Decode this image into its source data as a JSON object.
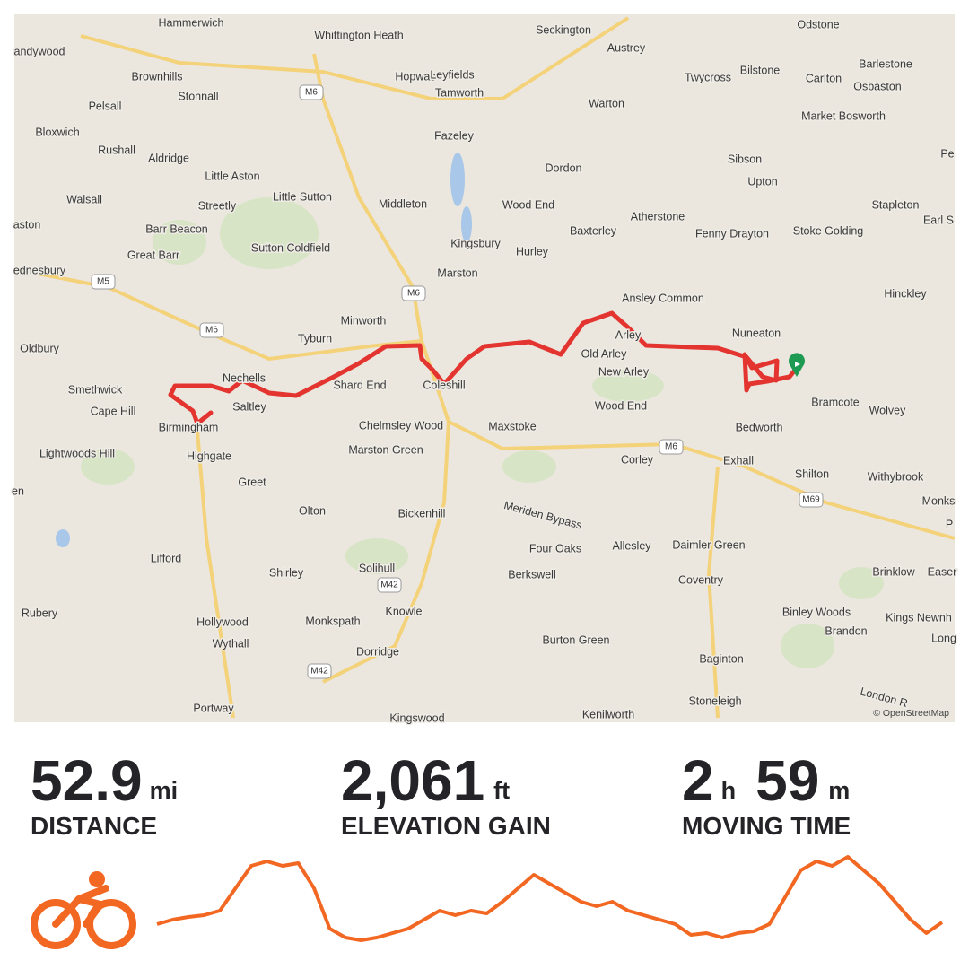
{
  "map": {
    "labels": [
      "Hammerwich",
      "Whittington Heath",
      "Seckington",
      "Austrey",
      "Odstone",
      "andywood",
      "Brownhills",
      "Hopwas",
      "Leyfields",
      "Tamworth",
      "Bilstone",
      "Barlestone",
      "Stonnall",
      "Twycross",
      "Carlton",
      "Osbaston",
      "Pelsall",
      "Warton",
      "Market Bosworth",
      "Bloxwich",
      "Rushall",
      "Aldridge",
      "Fazeley",
      "Sibson",
      "Pe",
      "Little Aston",
      "Dordon",
      "Upton",
      "Walsall",
      "Little Sutton",
      "Streetly",
      "Middleton",
      "Wood End",
      "Atherstone",
      "Stapleton",
      "Earl S",
      "aston",
      "Barr Beacon",
      "Baxterley",
      "Fenny Drayton",
      "Stoke Golding",
      "Sutton Coldfield",
      "Kingsbury",
      "Hurley",
      "Great Barr",
      "Marston",
      "ednesbury",
      "Hinckley",
      "Ansley Common",
      "Minworth",
      "Tyburn",
      "Nuneaton",
      "Arley",
      "Old Arley",
      "Oldbury",
      "Nechells",
      "Shard End",
      "Coleshill",
      "New Arley",
      "Smethwick",
      "Saltley",
      "Bramcote",
      "Wolvey",
      "Cape Hill",
      "Birmingham",
      "Chelmsley Wood",
      "Maxstoke",
      "Wood End",
      "Bedworth",
      "Lightwoods Hill",
      "Highgate",
      "Marston Green",
      "Corley",
      "Exhall",
      "Greet",
      "Shilton",
      "Withybrook",
      "en",
      "Monks",
      "Olton",
      "Bickenhill",
      "Meriden Bypass",
      "Four Oaks",
      "Allesley",
      "Daimler Green",
      "P",
      "Lifford",
      "Shirley",
      "Solihull",
      "Berkswell",
      "Coventry",
      "Brinklow",
      "Easer",
      "Rubery",
      "Knowle",
      "Hollywood",
      "Monkspath",
      "Binley Woods",
      "Kings Newnh",
      "Wythall",
      "Dorridge",
      "Burton Green",
      "Brandon",
      "Long",
      "Baginton",
      "Portway",
      "Stoneleigh",
      "London R",
      "Kingswood",
      "Kenilworth"
    ],
    "roads": [
      "M6",
      "M6",
      "M6",
      "M5",
      "M6",
      "M69",
      "M42",
      "M42"
    ],
    "attribution": "© OpenStreetMap"
  },
  "stats": [
    {
      "parts": [
        {
          "value": "52.9",
          "unit": "mi"
        }
      ],
      "label": "DISTANCE"
    },
    {
      "parts": [
        {
          "value": "2,061",
          "unit": "ft"
        }
      ],
      "label": "ELEVATION GAIN"
    },
    {
      "parts": [
        {
          "value": "2",
          "unit": "h"
        },
        {
          "value": "59",
          "unit": "m"
        }
      ],
      "label": "MOVING TIME"
    }
  ],
  "elevation_profile": [
    30,
    35,
    38,
    40,
    45,
    70,
    95,
    100,
    95,
    98,
    70,
    25,
    15,
    12,
    15,
    20,
    25,
    35,
    45,
    40,
    45,
    42,
    55,
    70,
    85,
    75,
    65,
    55,
    50,
    55,
    45,
    40,
    35,
    30,
    18,
    20,
    15,
    20,
    22,
    30,
    60,
    90,
    100,
    95,
    105,
    90,
    75,
    55,
    35,
    20,
    32
  ]
}
